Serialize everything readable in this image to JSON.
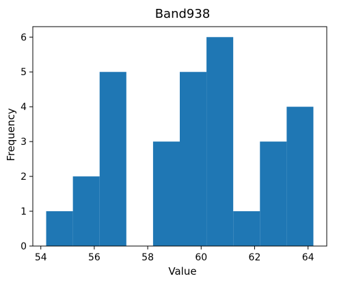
{
  "chart_data": {
    "type": "bar",
    "title": "Band938",
    "xlabel": "Value",
    "ylabel": "Frequency",
    "bin_edges": [
      54.2,
      55.2,
      56.2,
      57.2,
      58.2,
      59.2,
      60.2,
      61.2,
      62.2,
      63.2,
      64.2
    ],
    "values": [
      1,
      2,
      5,
      0,
      3,
      5,
      6,
      1,
      3,
      4
    ],
    "xlim": [
      53.7,
      64.7
    ],
    "ylim": [
      0,
      6.3
    ],
    "xticks": [
      54,
      56,
      58,
      60,
      62,
      64
    ],
    "yticks": [
      0,
      1,
      2,
      3,
      4,
      5,
      6
    ],
    "bar_color": "#1f77b4",
    "grid": false
  }
}
